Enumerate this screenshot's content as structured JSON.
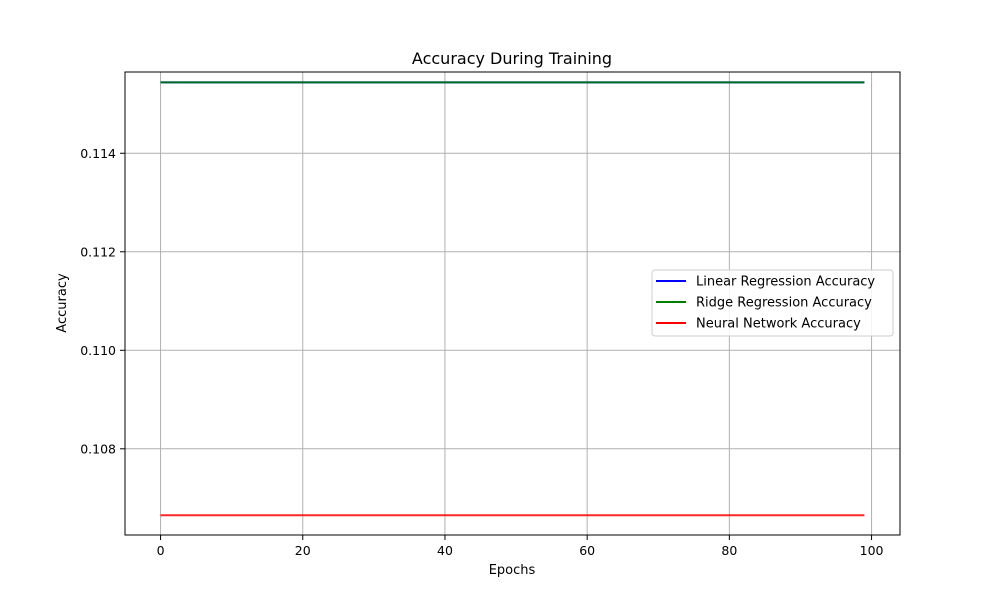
{
  "colors": {
    "background": "#ffffff",
    "grid": "#b0b0b0",
    "axis": "#000000",
    "legend_border": "#cccccc"
  },
  "chart_data": {
    "type": "line",
    "title": "Accuracy During Training",
    "xlabel": "Epochs",
    "ylabel": "Accuracy",
    "xlim": [
      -5,
      104
    ],
    "ylim": [
      0.10625,
      0.11565
    ],
    "xticks": [
      0,
      20,
      40,
      60,
      80,
      100
    ],
    "yticks": [
      0.108,
      0.11,
      0.112,
      0.114
    ],
    "xtick_labels": [
      "0",
      "20",
      "40",
      "60",
      "80",
      "100"
    ],
    "ytick_labels": [
      "0.108",
      "0.110",
      "0.112",
      "0.114"
    ],
    "grid": true,
    "legend": "center-right",
    "series": [
      {
        "name": "Linear Regression Accuracy",
        "color": "#0000ff",
        "x": [
          0,
          99
        ],
        "y": [
          0.11544,
          0.11544
        ]
      },
      {
        "name": "Ridge Regression Accuracy",
        "color": "#008000",
        "x": [
          0,
          99
        ],
        "y": [
          0.11544,
          0.11544
        ]
      },
      {
        "name": "Neural Network Accuracy",
        "color": "#ff0000",
        "x": [
          0,
          99
        ],
        "y": [
          0.10665,
          0.10665
        ]
      }
    ]
  }
}
